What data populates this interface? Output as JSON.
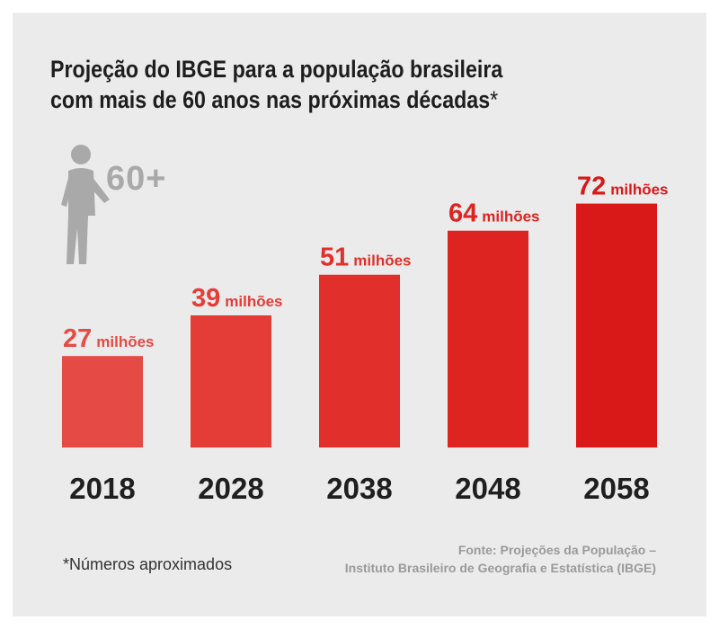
{
  "title": {
    "line1": "Projeção do IBGE para a população brasileira",
    "line2": "com mais de 60 anos nas próximas décadas",
    "mark": "*"
  },
  "icon": {
    "name": "elderly-person-icon",
    "label": "60+"
  },
  "chart_data": {
    "type": "bar",
    "categories": [
      "2018",
      "2028",
      "2038",
      "2048",
      "2058"
    ],
    "values": [
      27,
      39,
      51,
      64,
      72
    ],
    "value_labels": [
      "27",
      "39",
      "51",
      "64",
      "72"
    ],
    "unit": "milhões",
    "title": "Projeção do IBGE para a população brasileira com mais de 60 anos nas próximas décadas*",
    "xlabel": "",
    "ylabel": "",
    "ylim": [
      0,
      90
    ],
    "grid": false,
    "colors": [
      "#e64a44",
      "#e43c37",
      "#e1302b",
      "#de2420",
      "#d91818"
    ]
  },
  "footnote": "*Números aproximados",
  "source": {
    "line1": "Fonte: Projeções da População –",
    "line2": "Instituto Brasileiro de Geografia e Estatística (IBGE)"
  }
}
